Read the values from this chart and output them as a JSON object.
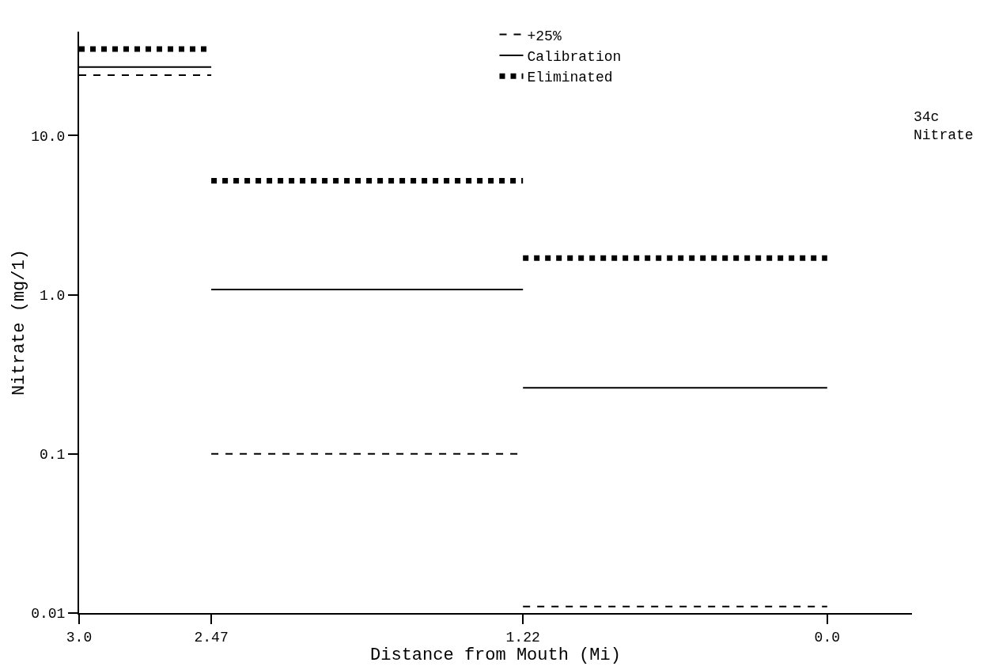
{
  "chart_data": {
    "type": "line",
    "xlabel": "Distance from Mouth (Mi)",
    "ylabel": "Nitrate (mg/1)",
    "x": [
      3.0,
      2.47,
      null,
      2.47,
      1.22,
      null,
      1.22,
      0.0
    ],
    "series": [
      {
        "name": "+25%",
        "color": "#000000",
        "line_style": "dashed",
        "values": [
          24,
          24,
          null,
          0.1,
          0.1,
          null,
          0.011,
          0.011
        ]
      },
      {
        "name": "Calibration",
        "color": "#000000",
        "line_style": "solid",
        "values": [
          27,
          27,
          null,
          1.08,
          1.08,
          null,
          0.26,
          0.26
        ]
      },
      {
        "name": "Eliminated",
        "color": "#000000",
        "line_style": "dotted",
        "values": [
          35,
          35,
          null,
          5.2,
          5.2,
          null,
          1.7,
          1.7
        ]
      }
    ],
    "log": "y",
    "xlim": [
      3.0,
      -0.34
    ],
    "xticks": [
      {
        "value": 3,
        "label": "3.0"
      },
      2.47,
      1.22,
      {
        "value": 0,
        "label": "0.0"
      }
    ],
    "ylim": [
      0.01,
      45
    ],
    "yticks": [
      0.01,
      0.1,
      {
        "value": 1,
        "label": "1.0"
      },
      {
        "value": 10,
        "label": "10.0"
      }
    ],
    "grid": false,
    "legend": "top",
    "marker": "none",
    "annotations": [
      "34c\nNitrate"
    ]
  }
}
